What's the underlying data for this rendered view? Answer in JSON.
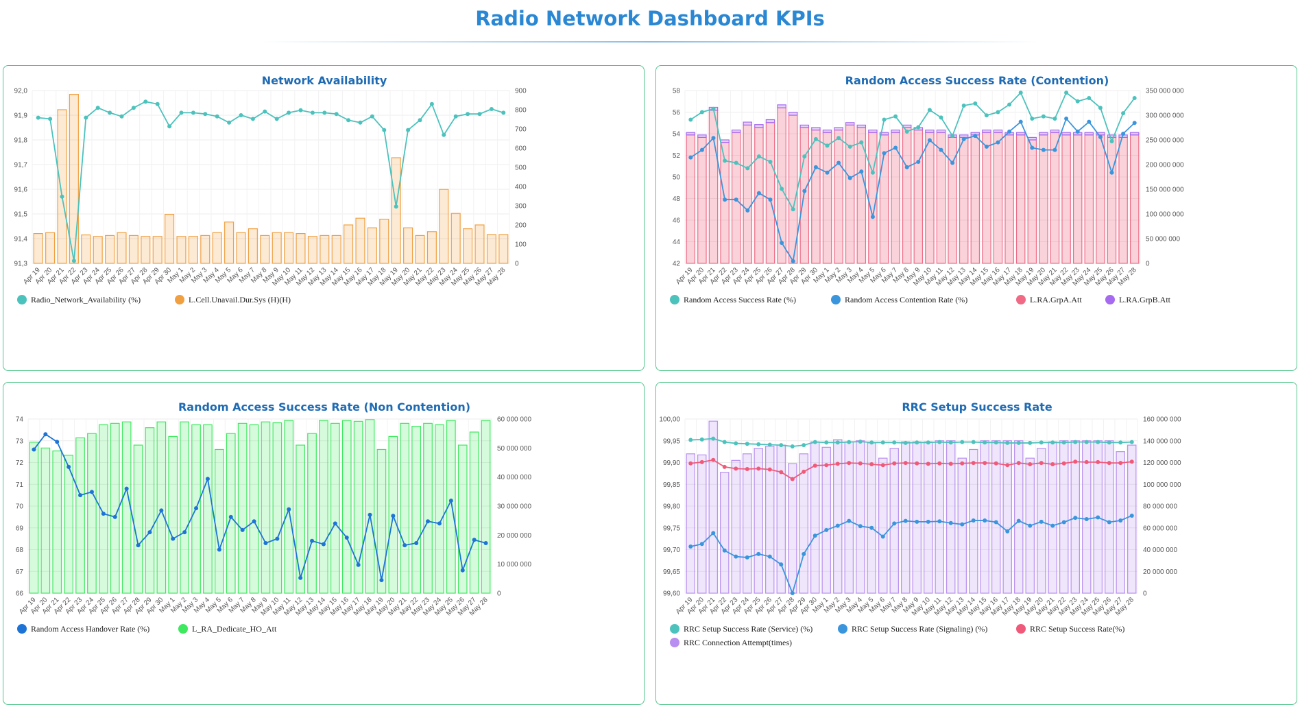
{
  "page": {
    "title": "Radio Network Dashboard KPIs"
  },
  "dates": [
    "Apr 19",
    "Apr 20",
    "Apr 21",
    "Apr 22",
    "Apr 23",
    "Apr 24",
    "Apr 25",
    "Apr 26",
    "Apr 27",
    "Apr 28",
    "Apr 29",
    "Apr 30",
    "May 1",
    "May 2",
    "May 3",
    "May 4",
    "May 5",
    "May 6",
    "May 7",
    "May 8",
    "May 9",
    "May 10",
    "May 11",
    "May 12",
    "May 13",
    "May 14",
    "May 15",
    "May 16",
    "May 17",
    "May 18",
    "May 19",
    "May 20",
    "May 21",
    "May 22",
    "May 23",
    "May 24",
    "May 25",
    "May 26",
    "May 27",
    "May 28"
  ],
  "chart_data": [
    {
      "id": "availability",
      "type": "bar",
      "title": "Network Availability",
      "y_left": {
        "min": 91.3,
        "max": 92.0,
        "ticks": [
          91.3,
          91.4,
          91.5,
          91.6,
          91.7,
          91.8,
          91.9,
          92.0
        ],
        "decimals": 1
      },
      "y_right": {
        "min": 0,
        "max": 900,
        "ticks": [
          0,
          100,
          200,
          300,
          400,
          500,
          600,
          700,
          800,
          900
        ]
      },
      "grid": true,
      "legend_position": "bottom-left",
      "series": [
        {
          "name": "Radio_Network_Availability (%)",
          "type": "line",
          "axis": "left",
          "color": "#4cc2bd",
          "values": [
            91.89,
            91.885,
            91.57,
            91.31,
            91.89,
            91.93,
            91.91,
            91.895,
            91.93,
            91.955,
            91.945,
            91.855,
            91.91,
            91.91,
            91.905,
            91.895,
            91.87,
            91.9,
            91.885,
            91.915,
            91.885,
            91.91,
            91.92,
            91.91,
            91.91,
            91.905,
            91.88,
            91.87,
            91.895,
            91.84,
            91.53,
            91.84,
            91.88,
            91.945,
            91.82,
            91.895,
            91.905,
            91.905,
            91.925,
            91.91
          ]
        },
        {
          "name": "L.Cell.Unavail.Dur.Sys (H)(H)",
          "type": "bar",
          "axis": "right",
          "color": "#f0a041",
          "values": [
            155,
            160,
            800,
            880,
            148,
            140,
            145,
            160,
            145,
            140,
            140,
            255,
            140,
            140,
            145,
            160,
            215,
            160,
            180,
            145,
            160,
            160,
            155,
            140,
            145,
            145,
            200,
            235,
            185,
            230,
            550,
            185,
            145,
            165,
            385,
            260,
            180,
            200,
            150,
            150
          ]
        }
      ]
    },
    {
      "id": "ra_contention",
      "type": "bar",
      "title": "Random Access Success Rate (Contention)",
      "y_left": {
        "min": 42,
        "max": 58,
        "ticks": [
          42,
          44,
          46,
          48,
          50,
          52,
          54,
          56,
          58
        ],
        "decimals": 0
      },
      "y_right": {
        "min": 0,
        "max": 350000000,
        "ticks": [
          0,
          50000000,
          100000000,
          150000000,
          200000000,
          250000000,
          300000000,
          350000000
        ]
      },
      "grid": true,
      "legend_position": "bottom-left",
      "series": [
        {
          "name": "Random Access Success Rate (%)",
          "type": "line",
          "axis": "left",
          "color": "#4cc2bd",
          "values": [
            55.3,
            56.0,
            56.3,
            51.5,
            51.3,
            50.8,
            51.9,
            51.4,
            48.9,
            47.0,
            51.9,
            53.5,
            52.9,
            53.6,
            52.8,
            53.2,
            50.4,
            55.3,
            55.6,
            54.2,
            54.6,
            56.2,
            55.5,
            53.8,
            56.6,
            56.8,
            55.7,
            56.0,
            56.7,
            57.8,
            55.4,
            55.6,
            55.4,
            57.8,
            57.0,
            57.3,
            56.4,
            53.3,
            55.9,
            57.3
          ]
        },
        {
          "name": "Random Access Contention Rate (%)",
          "type": "line",
          "axis": "left",
          "color": "#3a95dc",
          "values": [
            51.8,
            52.5,
            53.6,
            47.9,
            47.9,
            46.9,
            48.5,
            47.9,
            43.9,
            42.2,
            48.7,
            50.9,
            50.4,
            51.3,
            49.9,
            50.5,
            46.3,
            52.2,
            52.7,
            50.9,
            51.4,
            53.4,
            52.5,
            51.3,
            53.5,
            53.8,
            52.8,
            53.2,
            54.2,
            55.1,
            52.7,
            52.5,
            52.5,
            55.4,
            54.2,
            55.1,
            53.7,
            50.4,
            54.0,
            55.0
          ]
        },
        {
          "name": "L.RA.GrpA.Att",
          "type": "bar",
          "axis": "right",
          "color": "#f06a86",
          "values": [
            260000000,
            255000000,
            310000000,
            245000000,
            265000000,
            280000000,
            275000000,
            285000000,
            315000000,
            300000000,
            275000000,
            270000000,
            265000000,
            270000000,
            280000000,
            275000000,
            265000000,
            260000000,
            265000000,
            275000000,
            270000000,
            265000000,
            265000000,
            255000000,
            255000000,
            260000000,
            265000000,
            265000000,
            260000000,
            260000000,
            250000000,
            260000000,
            265000000,
            260000000,
            260000000,
            260000000,
            260000000,
            255000000,
            255000000,
            260000000
          ]
        },
        {
          "name": "L.RA.GrpB.Att",
          "type": "bar",
          "axis": "right",
          "color": "#a66af0",
          "values": [
            5000000,
            5000000,
            6000000,
            5000000,
            5000000,
            6000000,
            6000000,
            6000000,
            6000000,
            6000000,
            5000000,
            5000000,
            5000000,
            5000000,
            5000000,
            5000000,
            5000000,
            5000000,
            5000000,
            5000000,
            5000000,
            5000000,
            5000000,
            5000000,
            5000000,
            5000000,
            5000000,
            5000000,
            5000000,
            5000000,
            5000000,
            5000000,
            5000000,
            5000000,
            5000000,
            5000000,
            5000000,
            5000000,
            5000000,
            5000000
          ]
        }
      ]
    },
    {
      "id": "ra_noncontention",
      "type": "bar",
      "title": "Random Access Success Rate (Non Contention)",
      "y_left": {
        "min": 66,
        "max": 74,
        "ticks": [
          66,
          67,
          68,
          69,
          70,
          71,
          72,
          73,
          74
        ],
        "decimals": 0
      },
      "y_right": {
        "min": 0,
        "max": 60000000,
        "ticks": [
          0,
          10000000,
          20000000,
          30000000,
          40000000,
          50000000,
          60000000
        ]
      },
      "grid": true,
      "legend_position": "bottom-left",
      "series": [
        {
          "name": "Random Access Handover Rate (%)",
          "type": "line",
          "axis": "left",
          "color": "#1d74d6",
          "values": [
            72.6,
            73.3,
            72.95,
            71.8,
            70.5,
            70.65,
            69.65,
            69.5,
            70.8,
            68.2,
            68.8,
            69.8,
            68.5,
            68.8,
            69.9,
            71.25,
            68.0,
            69.5,
            68.9,
            69.3,
            68.3,
            68.5,
            69.85,
            66.7,
            68.4,
            68.25,
            69.2,
            68.55,
            67.3,
            69.6,
            66.6,
            69.55,
            68.2,
            68.3,
            69.3,
            69.2,
            70.25,
            67.05,
            68.45,
            68.3
          ]
        },
        {
          "name": "L_RA_Dedicate_HO_Att",
          "type": "bar",
          "axis": "right",
          "color": "#3ee85f",
          "values": [
            52000000,
            50000000,
            49000000,
            47500000,
            53500000,
            55000000,
            58000000,
            58500000,
            59000000,
            51000000,
            57000000,
            59000000,
            54000000,
            59000000,
            58000000,
            58000000,
            49500000,
            55000000,
            58500000,
            58000000,
            59000000,
            58700000,
            59500000,
            51000000,
            55000000,
            59500000,
            58500000,
            59500000,
            59200000,
            59800000,
            49500000,
            54000000,
            58500000,
            57500000,
            58500000,
            58000000,
            59500000,
            51000000,
            55500000,
            59500000
          ]
        }
      ]
    },
    {
      "id": "rrc_setup",
      "type": "bar",
      "title": "RRC Setup Success Rate",
      "y_left": {
        "min": 99.6,
        "max": 100.0,
        "ticks": [
          99.6,
          99.65,
          99.7,
          99.75,
          99.8,
          99.85,
          99.9,
          99.95,
          100.0
        ],
        "decimals": 2
      },
      "y_right": {
        "min": 0,
        "max": 160000000,
        "ticks": [
          0,
          20000000,
          40000000,
          60000000,
          80000000,
          100000000,
          120000000,
          140000000,
          160000000
        ]
      },
      "grid": true,
      "legend_position": "bottom-left",
      "series": [
        {
          "name": "RRC Setup Success Rate (Service) (%)",
          "type": "line",
          "axis": "left",
          "color": "#4cc2bd",
          "values": [
            99.952,
            99.953,
            99.955,
            99.947,
            99.944,
            99.943,
            99.942,
            99.941,
            99.94,
            99.937,
            99.94,
            99.947,
            99.946,
            99.946,
            99.947,
            99.948,
            99.946,
            99.946,
            99.946,
            99.945,
            99.946,
            99.946,
            99.947,
            99.946,
            99.947,
            99.947,
            99.946,
            99.946,
            99.945,
            99.945,
            99.945,
            99.946,
            99.946,
            99.946,
            99.947,
            99.947,
            99.947,
            99.946,
            99.946,
            99.947
          ]
        },
        {
          "name": "RRC Setup Success Rate (Signaling) (%)",
          "type": "line",
          "axis": "left",
          "color": "#3a95dc",
          "values": [
            99.707,
            99.713,
            99.738,
            99.698,
            99.684,
            99.682,
            99.69,
            99.684,
            99.666,
            99.6,
            99.69,
            99.732,
            99.745,
            99.755,
            99.766,
            99.754,
            99.75,
            99.73,
            99.76,
            99.766,
            99.764,
            99.764,
            99.765,
            99.761,
            99.758,
            99.767,
            99.767,
            99.763,
            99.742,
            99.766,
            99.755,
            99.764,
            99.755,
            99.763,
            99.773,
            99.77,
            99.774,
            99.763,
            99.767,
            99.778
          ]
        },
        {
          "name": "RRC Setup Success Rate(%)",
          "type": "line",
          "axis": "left",
          "color": "#f05a7a",
          "values": [
            99.898,
            99.901,
            99.906,
            99.89,
            99.886,
            99.885,
            99.886,
            99.884,
            99.878,
            99.862,
            99.879,
            99.893,
            99.894,
            99.897,
            99.899,
            99.898,
            99.896,
            99.894,
            99.898,
            99.899,
            99.898,
            99.897,
            99.898,
            99.897,
            99.898,
            99.899,
            99.899,
            99.898,
            99.894,
            99.899,
            99.896,
            99.899,
            99.896,
            99.898,
            99.902,
            99.901,
            99.901,
            99.899,
            99.899,
            99.902
          ]
        },
        {
          "name": "RRC Connection Attempt(times)",
          "type": "bar",
          "axis": "right",
          "color": "#b88ef0",
          "values": [
            128000000,
            127000000,
            158000000,
            111000000,
            122000000,
            128000000,
            133000000,
            135000000,
            136000000,
            119000000,
            128000000,
            139000000,
            134000000,
            141000000,
            139000000,
            140000000,
            138000000,
            124000000,
            133000000,
            139000000,
            139000000,
            139000000,
            140000000,
            140000000,
            124000000,
            132000000,
            140000000,
            140000000,
            140000000,
            140000000,
            124000000,
            133000000,
            139000000,
            140000000,
            140000000,
            140000000,
            140000000,
            140000000,
            130000000,
            136000000
          ]
        }
      ]
    }
  ]
}
